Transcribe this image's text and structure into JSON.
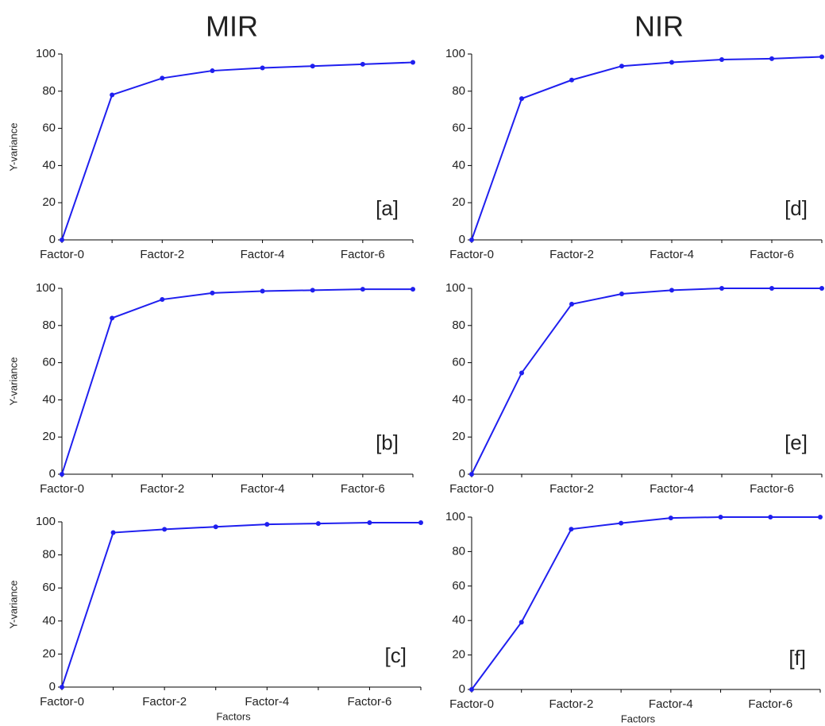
{
  "column_titles": [
    "MIR",
    "NIR"
  ],
  "chart_data": [
    {
      "type": "line",
      "annotation": "[a]",
      "ylabel": "Y-variance",
      "categories": [
        "Factor-0",
        null,
        "Factor-2",
        null,
        "Factor-4",
        null,
        "Factor-6",
        null
      ],
      "values": [
        0,
        78,
        87,
        91,
        92.5,
        93.5,
        94.5,
        95.5
      ],
      "color": "#1f1fef",
      "ylim": [
        0,
        100
      ],
      "yticks": [
        0,
        20,
        40,
        60,
        80,
        100
      ]
    },
    {
      "type": "line",
      "annotation": "[b]",
      "ylabel": "Y-variance",
      "categories": [
        "Factor-0",
        null,
        "Factor-2",
        null,
        "Factor-4",
        null,
        "Factor-6",
        null
      ],
      "values": [
        0,
        84,
        94,
        97.5,
        98.5,
        99,
        99.5,
        99.5
      ],
      "color": "#1f1fef",
      "ylim": [
        0,
        100
      ],
      "yticks": [
        0,
        20,
        40,
        60,
        80,
        100
      ]
    },
    {
      "type": "line",
      "annotation": "[c]",
      "ylabel": "Y-variance",
      "xlabel": "Factors",
      "categories": [
        "Factor-0",
        null,
        "Factor-2",
        null,
        "Factor-4",
        null,
        "Factor-6",
        null
      ],
      "values": [
        0,
        93.5,
        95.5,
        97,
        98.5,
        99,
        99.5,
        99.5
      ],
      "color": "#1f1fef",
      "ylim": [
        0,
        100
      ],
      "yticks": [
        0,
        20,
        40,
        60,
        80,
        100
      ]
    },
    {
      "type": "line",
      "annotation": "[d]",
      "categories": [
        "Factor-0",
        null,
        "Factor-2",
        null,
        "Factor-4",
        null,
        "Factor-6",
        null
      ],
      "values": [
        0,
        76,
        86,
        93.5,
        95.5,
        97,
        97.5,
        98.5
      ],
      "color": "#1f1fef",
      "ylim": [
        0,
        100
      ],
      "yticks": [
        0,
        20,
        40,
        60,
        80,
        100
      ]
    },
    {
      "type": "line",
      "annotation": "[e]",
      "categories": [
        "Factor-0",
        null,
        "Factor-2",
        null,
        "Factor-4",
        null,
        "Factor-6",
        null
      ],
      "values": [
        0,
        54.5,
        91.5,
        97,
        99,
        100,
        100,
        100
      ],
      "color": "#1f1fef",
      "ylim": [
        0,
        100
      ],
      "yticks": [
        0,
        20,
        40,
        60,
        80,
        100
      ]
    },
    {
      "type": "line",
      "annotation": "[f]",
      "xlabel": "Factors",
      "categories": [
        "Factor-0",
        null,
        "Factor-2",
        null,
        "Factor-4",
        null,
        "Factor-6",
        null
      ],
      "values": [
        0,
        39,
        93,
        96.5,
        99.5,
        100,
        100,
        100
      ],
      "color": "#1f1fef",
      "ylim": [
        0,
        100
      ],
      "yticks": [
        0,
        20,
        40,
        60,
        80,
        100
      ]
    }
  ]
}
